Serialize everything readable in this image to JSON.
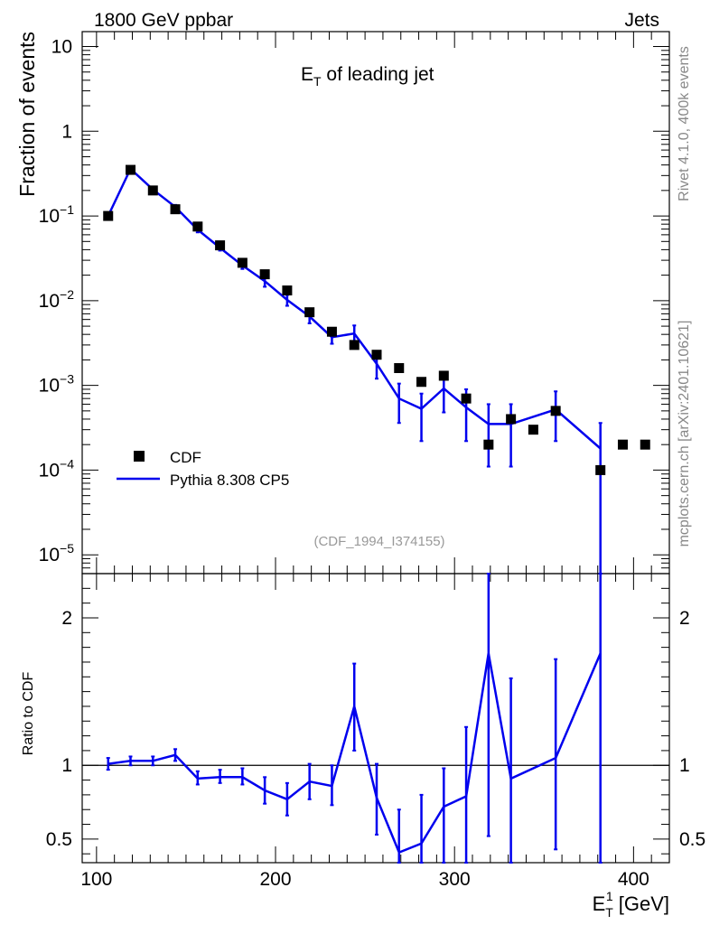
{
  "header": {
    "process": "1800 GeV ppbar",
    "category": "Jets"
  },
  "side_labels": {
    "rivet": "Rivet 4.1.0,  400k events",
    "mcplots": "mcplots.cern.ch [arXiv:2401.10621]"
  },
  "chart_data": [
    {
      "type": "scatter+line",
      "title_main": "E",
      "title_sub": "T",
      "title_rest": " of leading jet",
      "watermark": "(CDF_1994_I374155)",
      "ylabel": "Fraction of events",
      "yscale": "log",
      "ylim": [
        6e-06,
        15
      ],
      "xlim": [
        92,
        420
      ],
      "ytick_labels": [
        {
          "value": 10,
          "base": "10",
          "exp": ""
        },
        {
          "value": 1,
          "base": "1",
          "exp": ""
        },
        {
          "value": 0.1,
          "base": "10",
          "exp": "−1"
        },
        {
          "value": 0.01,
          "base": "10",
          "exp": "−2"
        },
        {
          "value": 0.001,
          "base": "10",
          "exp": "−3"
        },
        {
          "value": 0.0001,
          "base": "10",
          "exp": "−4"
        },
        {
          "value": 1e-05,
          "base": "10",
          "exp": "−5"
        }
      ],
      "legend": [
        {
          "name": "CDF",
          "marker": "square",
          "color": "#000000"
        },
        {
          "name": "Pythia 8.308 CP5",
          "marker": "line",
          "color": "#0000ee"
        }
      ],
      "data_series": {
        "name": "CDF",
        "x": [
          106.5,
          119,
          131.5,
          144,
          156.5,
          169,
          181.5,
          194,
          206.5,
          219,
          231.5,
          244,
          256.5,
          269,
          281.5,
          294,
          306.5,
          319,
          331.5,
          344,
          356.5,
          381.5,
          394,
          406.5
        ],
        "y": [
          0.1,
          0.35,
          0.2,
          0.12,
          0.075,
          0.045,
          0.028,
          0.0205,
          0.0132,
          0.0073,
          0.0043,
          0.003,
          0.0023,
          0.0016,
          0.0011,
          0.0013,
          0.0007,
          0.0002,
          0.0004,
          0.0003,
          0.0005,
          0.0001,
          0.0002,
          0.0002
        ]
      },
      "mc_series": {
        "name": "Pythia 8.308 CP5",
        "x": [
          106.5,
          119,
          131.5,
          144,
          156.5,
          169,
          181.5,
          194,
          206.5,
          219,
          231.5,
          244,
          256.5,
          269,
          281.5,
          294,
          306.5,
          319,
          331.5,
          356.5,
          381.5
        ],
        "y": [
          0.1,
          0.36,
          0.205,
          0.128,
          0.069,
          0.042,
          0.026,
          0.017,
          0.0102,
          0.0065,
          0.0037,
          0.0041,
          0.0018,
          0.0007,
          0.00053,
          0.00092,
          0.00055,
          0.00035,
          0.00035,
          0.00052,
          0.00018
        ],
        "err_lo": [
          0.092,
          0.34,
          0.195,
          0.121,
          0.064,
          0.039,
          0.0237,
          0.0146,
          0.0087,
          0.0054,
          0.0031,
          0.0031,
          0.0012,
          0.00036,
          0.00022,
          0.00048,
          0.00022,
          0.00011,
          0.00011,
          0.00022,
          5e-06
        ],
        "err_hi": [
          0.108,
          0.38,
          0.215,
          0.135,
          0.074,
          0.045,
          0.0283,
          0.0194,
          0.0117,
          0.0076,
          0.0044,
          0.0051,
          0.0025,
          0.00105,
          0.0008,
          0.0014,
          0.0009,
          0.0006,
          0.0006,
          0.00085,
          0.00036
        ]
      }
    },
    {
      "type": "line",
      "ylabel": "Ratio to CDF",
      "xlabel_main": "E",
      "xlabel_sub": "T",
      "xlabel_sup": "1",
      "xlabel_rest": " [GeV]",
      "ylim": [
        0.34,
        2.3
      ],
      "xlim": [
        92,
        420
      ],
      "reference_line": 1,
      "ytick_labels": [
        {
          "value": 2,
          "label": "2"
        },
        {
          "value": 1,
          "label": "1"
        },
        {
          "value": 0.5,
          "label": "0.5"
        }
      ],
      "xtick_labels": [
        {
          "value": 100,
          "label": "100"
        },
        {
          "value": 200,
          "label": "200"
        },
        {
          "value": 300,
          "label": "300"
        },
        {
          "value": 400,
          "label": "400"
        }
      ],
      "ratio_series": {
        "name": "Pythia 8.308 CP5 / CDF",
        "x": [
          106.5,
          119,
          131.5,
          144,
          156.5,
          169,
          181.5,
          194,
          206.5,
          219,
          231.5,
          244,
          256.5,
          269,
          281.5,
          294,
          306.5,
          319,
          331.5,
          356.5,
          381.5
        ],
        "y": [
          1.01,
          1.03,
          1.03,
          1.07,
          0.91,
          0.92,
          0.92,
          0.83,
          0.77,
          0.89,
          0.86,
          1.4,
          0.78,
          0.41,
          0.47,
          0.72,
          0.79,
          1.76,
          0.91,
          1.05,
          1.76
        ],
        "err_lo": [
          0.97,
          1.0,
          1.0,
          1.03,
          0.87,
          0.88,
          0.87,
          0.74,
          0.66,
          0.77,
          0.73,
          1.1,
          0.53,
          0.2,
          0.2,
          0.34,
          0.31,
          0.52,
          0.28,
          0.43,
          0.34
        ],
        "err_hi": [
          1.05,
          1.06,
          1.06,
          1.11,
          0.96,
          0.97,
          0.98,
          0.92,
          0.88,
          1.01,
          1.0,
          1.69,
          1.01,
          0.7,
          0.8,
          0.98,
          1.26,
          2.3,
          1.59,
          1.72,
          2.3
        ]
      }
    }
  ]
}
